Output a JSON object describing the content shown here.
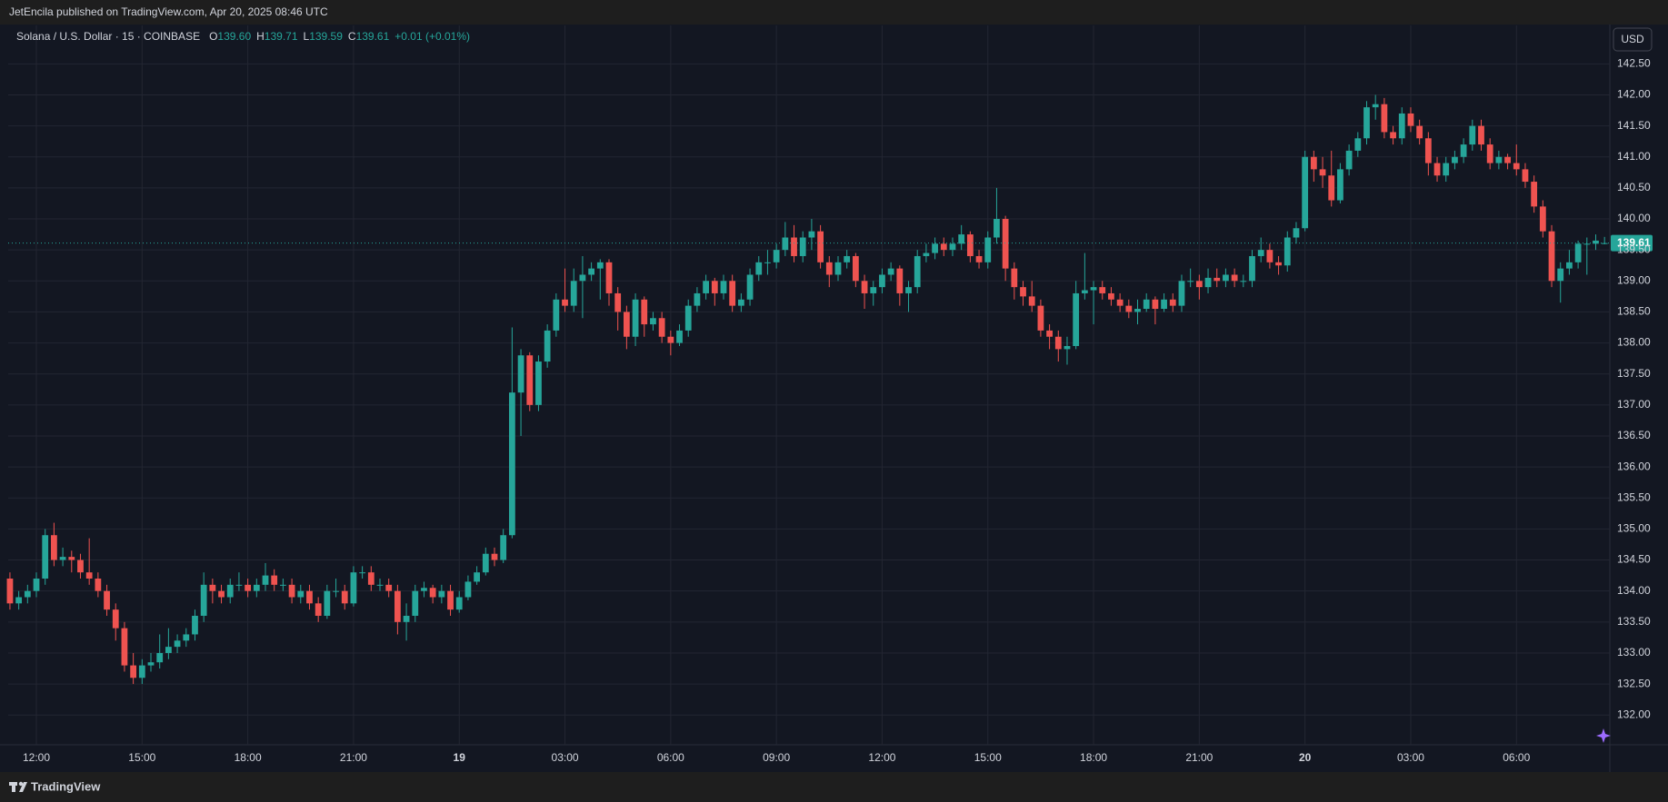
{
  "header": "JetEncila published on TradingView.com, Apr 20, 2025 08:46 UTC",
  "footer": "TradingView",
  "chart_data": {
    "type": "candlestick",
    "symbol": "Solana / U.S. Dollar · 15 · COINBASE",
    "legend_ohlc": [
      {
        "key": "O",
        "value": "139.60"
      },
      {
        "key": "H",
        "value": "139.71"
      },
      {
        "key": "L",
        "value": "139.59"
      },
      {
        "key": "C",
        "value": "139.61"
      }
    ],
    "change": "+0.01 (+0.01%)",
    "currency": "USD",
    "up_color": "#26a69a",
    "down_color": "#ef5350",
    "grid": true,
    "last_price": {
      "value": 139.61,
      "label": "139.61"
    },
    "xlim": [
      11.2,
      56.65
    ],
    "ylim": [
      131.52,
      143.12
    ],
    "xticks": [
      {
        "value": 12,
        "label": "12:00"
      },
      {
        "value": 15,
        "label": "15:00"
      },
      {
        "value": 18,
        "label": "18:00"
      },
      {
        "value": 21,
        "label": "21:00"
      },
      {
        "value": 24,
        "label": "19"
      },
      {
        "value": 27,
        "label": "03:00"
      },
      {
        "value": 30,
        "label": "06:00"
      },
      {
        "value": 33,
        "label": "09:00"
      },
      {
        "value": 36,
        "label": "12:00"
      },
      {
        "value": 39,
        "label": "15:00"
      },
      {
        "value": 42,
        "label": "18:00"
      },
      {
        "value": 45,
        "label": "21:00"
      },
      {
        "value": 48,
        "label": "20"
      },
      {
        "value": 51,
        "label": "03:00"
      },
      {
        "value": 54,
        "label": "06:00"
      }
    ],
    "yticks": [
      {
        "value": 132,
        "label": "132.00"
      },
      {
        "value": 132.5,
        "label": "132.50"
      },
      {
        "value": 133,
        "label": "133.00"
      },
      {
        "value": 133.5,
        "label": "133.50"
      },
      {
        "value": 134,
        "label": "134.00"
      },
      {
        "value": 134.5,
        "label": "134.50"
      },
      {
        "value": 135,
        "label": "135.00"
      },
      {
        "value": 135.5,
        "label": "135.50"
      },
      {
        "value": 136,
        "label": "136.00"
      },
      {
        "value": 136.5,
        "label": "136.50"
      },
      {
        "value": 137,
        "label": "137.00"
      },
      {
        "value": 137.5,
        "label": "137.50"
      },
      {
        "value": 138,
        "label": "138.00"
      },
      {
        "value": 138.5,
        "label": "138.50"
      },
      {
        "value": 139,
        "label": "139.00"
      },
      {
        "value": 139.5,
        "label": "139.50"
      },
      {
        "value": 140,
        "label": "140.00"
      },
      {
        "value": 140.5,
        "label": "140.50"
      },
      {
        "value": 141,
        "label": "141.00"
      },
      {
        "value": 141.5,
        "label": "141.50"
      },
      {
        "value": 142,
        "label": "142.00"
      },
      {
        "value": 142.5,
        "label": "142.50"
      }
    ],
    "x": [
      11.25,
      11.5,
      11.75,
      12,
      12.25,
      12.5,
      12.75,
      13,
      13.25,
      13.5,
      13.75,
      14,
      14.25,
      14.5,
      14.75,
      15,
      15.25,
      15.5,
      15.75,
      16,
      16.25,
      16.5,
      16.75,
      17,
      17.25,
      17.5,
      17.75,
      18,
      18.25,
      18.5,
      18.75,
      19,
      19.25,
      19.5,
      19.75,
      20,
      20.25,
      20.5,
      20.75,
      21,
      21.25,
      21.5,
      21.75,
      22,
      22.25,
      22.5,
      22.75,
      23,
      23.25,
      23.5,
      23.75,
      24,
      24.25,
      24.5,
      24.75,
      25,
      25.25,
      25.5,
      25.75,
      26,
      26.25,
      26.5,
      26.75,
      27,
      27.25,
      27.5,
      27.75,
      28,
      28.25,
      28.5,
      28.75,
      29,
      29.25,
      29.5,
      29.75,
      30,
      30.25,
      30.5,
      30.75,
      31,
      31.25,
      31.5,
      31.75,
      32,
      32.25,
      32.5,
      32.75,
      33,
      33.25,
      33.5,
      33.75,
      34,
      34.25,
      34.5,
      34.75,
      35,
      35.25,
      35.5,
      35.75,
      36,
      36.25,
      36.5,
      36.75,
      37,
      37.25,
      37.5,
      37.75,
      38,
      38.25,
      38.5,
      38.75,
      39,
      39.25,
      39.5,
      39.75,
      40,
      40.25,
      40.5,
      40.75,
      41,
      41.25,
      41.5,
      41.75,
      42,
      42.25,
      42.5,
      42.75,
      43,
      43.25,
      43.5,
      43.75,
      44,
      44.25,
      44.5,
      44.75,
      45,
      45.25,
      45.5,
      45.75,
      46,
      46.25,
      46.5,
      46.75,
      47,
      47.25,
      47.5,
      47.75,
      48,
      48.25,
      48.5,
      48.75,
      49,
      49.25,
      49.5,
      49.75,
      50,
      50.25,
      50.5,
      50.75,
      51,
      51.25,
      51.5,
      51.75,
      52,
      52.25,
      52.5,
      52.75,
      53,
      53.25,
      53.5,
      53.75,
      54,
      54.25,
      54.5,
      54.75,
      55,
      55.25,
      55.5,
      55.75,
      56,
      56.25,
      56.5
    ],
    "ohlc": [
      [
        134.2,
        134.3,
        133.7,
        133.8
      ],
      [
        133.8,
        134.0,
        133.7,
        133.9
      ],
      [
        133.9,
        134.1,
        133.8,
        134.0
      ],
      [
        134.0,
        134.3,
        133.9,
        134.2
      ],
      [
        134.2,
        135.0,
        134.1,
        134.9
      ],
      [
        134.9,
        135.1,
        134.4,
        134.5
      ],
      [
        134.5,
        134.7,
        134.4,
        134.55
      ],
      [
        134.55,
        134.65,
        134.3,
        134.5
      ],
      [
        134.5,
        134.6,
        134.2,
        134.3
      ],
      [
        134.3,
        134.85,
        134.1,
        134.2
      ],
      [
        134.2,
        134.3,
        133.9,
        134.0
      ],
      [
        134.0,
        134.1,
        133.6,
        133.7
      ],
      [
        133.7,
        133.8,
        133.2,
        133.4
      ],
      [
        133.4,
        133.5,
        132.7,
        132.8
      ],
      [
        132.8,
        133.0,
        132.5,
        132.6
      ],
      [
        132.6,
        132.9,
        132.5,
        132.8
      ],
      [
        132.8,
        133.0,
        132.7,
        132.85
      ],
      [
        132.85,
        133.3,
        132.75,
        133.0
      ],
      [
        133.0,
        133.4,
        132.9,
        133.1
      ],
      [
        133.1,
        133.3,
        133.0,
        133.2
      ],
      [
        133.2,
        133.4,
        133.1,
        133.3
      ],
      [
        133.3,
        133.7,
        133.2,
        133.6
      ],
      [
        133.6,
        134.3,
        133.5,
        134.1
      ],
      [
        134.1,
        134.2,
        133.8,
        134.0
      ],
      [
        134.0,
        134.1,
        133.8,
        133.9
      ],
      [
        133.9,
        134.2,
        133.8,
        134.1
      ],
      [
        134.1,
        134.3,
        134.0,
        134.1
      ],
      [
        134.1,
        134.2,
        133.9,
        134.0
      ],
      [
        134.0,
        134.2,
        133.9,
        134.1
      ],
      [
        134.1,
        134.45,
        134.0,
        134.25
      ],
      [
        134.25,
        134.35,
        134.0,
        134.1
      ],
      [
        134.1,
        134.2,
        134.0,
        134.1
      ],
      [
        134.1,
        134.2,
        133.8,
        133.9
      ],
      [
        133.9,
        134.1,
        133.8,
        134.0
      ],
      [
        134.0,
        134.1,
        133.7,
        133.8
      ],
      [
        133.8,
        133.9,
        133.5,
        133.6
      ],
      [
        133.6,
        134.1,
        133.55,
        134.0
      ],
      [
        134.0,
        134.2,
        133.9,
        134.0
      ],
      [
        134.0,
        134.1,
        133.7,
        133.8
      ],
      [
        133.8,
        134.4,
        133.75,
        134.3
      ],
      [
        134.3,
        134.4,
        134.2,
        134.3
      ],
      [
        134.3,
        134.4,
        134.0,
        134.1
      ],
      [
        134.1,
        134.2,
        134.0,
        134.1
      ],
      [
        134.1,
        134.2,
        133.9,
        134.0
      ],
      [
        134.0,
        134.1,
        133.3,
        133.5
      ],
      [
        133.5,
        133.8,
        133.2,
        133.6
      ],
      [
        133.6,
        134.1,
        133.5,
        134.0
      ],
      [
        134.0,
        134.15,
        133.9,
        134.05
      ],
      [
        134.05,
        134.1,
        133.8,
        133.9
      ],
      [
        133.9,
        134.1,
        133.8,
        134.0
      ],
      [
        134.0,
        134.1,
        133.6,
        133.7
      ],
      [
        133.7,
        134.0,
        133.65,
        133.9
      ],
      [
        133.9,
        134.25,
        133.85,
        134.15
      ],
      [
        134.15,
        134.4,
        134.1,
        134.3
      ],
      [
        134.3,
        134.7,
        134.25,
        134.6
      ],
      [
        134.6,
        134.7,
        134.4,
        134.5
      ],
      [
        134.5,
        135.0,
        134.45,
        134.9
      ],
      [
        134.9,
        138.25,
        134.85,
        137.2
      ],
      [
        137.2,
        137.9,
        136.5,
        137.8
      ],
      [
        137.8,
        137.85,
        136.9,
        137.0
      ],
      [
        137.0,
        137.8,
        136.9,
        137.7
      ],
      [
        137.7,
        138.3,
        137.6,
        138.2
      ],
      [
        138.2,
        138.8,
        138.1,
        138.7
      ],
      [
        138.7,
        139.2,
        138.5,
        138.6
      ],
      [
        138.6,
        139.2,
        138.5,
        139.0
      ],
      [
        139.0,
        139.4,
        138.4,
        139.1
      ],
      [
        139.1,
        139.3,
        139.0,
        139.2
      ],
      [
        139.2,
        139.35,
        138.7,
        139.3
      ],
      [
        139.3,
        139.35,
        138.6,
        138.8
      ],
      [
        138.8,
        138.9,
        138.2,
        138.5
      ],
      [
        138.5,
        138.6,
        137.9,
        138.1
      ],
      [
        138.1,
        138.8,
        137.95,
        138.7
      ],
      [
        138.7,
        138.75,
        138.1,
        138.3
      ],
      [
        138.3,
        138.5,
        138.2,
        138.4
      ],
      [
        138.4,
        138.5,
        138.0,
        138.1
      ],
      [
        138.1,
        138.2,
        137.8,
        138.0
      ],
      [
        138.0,
        138.3,
        137.95,
        138.2
      ],
      [
        138.2,
        138.7,
        138.1,
        138.6
      ],
      [
        138.6,
        138.9,
        138.5,
        138.8
      ],
      [
        138.8,
        139.1,
        138.7,
        139.0
      ],
      [
        139.0,
        139.05,
        138.6,
        138.8
      ],
      [
        138.8,
        139.1,
        138.7,
        139.0
      ],
      [
        139.0,
        139.1,
        138.5,
        138.6
      ],
      [
        138.6,
        138.8,
        138.5,
        138.7
      ],
      [
        138.7,
        139.2,
        138.6,
        139.1
      ],
      [
        139.1,
        139.4,
        139.0,
        139.3
      ],
      [
        139.3,
        139.5,
        139.1,
        139.3
      ],
      [
        139.3,
        139.6,
        139.2,
        139.5
      ],
      [
        139.5,
        139.95,
        139.4,
        139.7
      ],
      [
        139.7,
        139.9,
        139.3,
        139.4
      ],
      [
        139.4,
        139.8,
        139.3,
        139.7
      ],
      [
        139.7,
        140.0,
        139.5,
        139.8
      ],
      [
        139.8,
        139.9,
        139.2,
        139.3
      ],
      [
        139.3,
        139.4,
        138.9,
        139.1
      ],
      [
        139.1,
        139.4,
        139.0,
        139.3
      ],
      [
        139.3,
        139.5,
        139.2,
        139.4
      ],
      [
        139.4,
        139.45,
        138.9,
        139.0
      ],
      [
        139.0,
        139.1,
        138.55,
        138.8
      ],
      [
        138.8,
        139.0,
        138.6,
        138.9
      ],
      [
        138.9,
        139.2,
        138.8,
        139.1
      ],
      [
        139.1,
        139.3,
        139.0,
        139.2
      ],
      [
        139.2,
        139.25,
        138.6,
        138.8
      ],
      [
        138.8,
        139.0,
        138.5,
        138.9
      ],
      [
        138.9,
        139.5,
        138.8,
        139.4
      ],
      [
        139.4,
        139.6,
        139.3,
        139.45
      ],
      [
        139.45,
        139.7,
        139.35,
        139.6
      ],
      [
        139.6,
        139.7,
        139.4,
        139.5
      ],
      [
        139.5,
        139.7,
        139.4,
        139.6
      ],
      [
        139.6,
        139.9,
        139.5,
        139.75
      ],
      [
        139.75,
        139.8,
        139.3,
        139.4
      ],
      [
        139.4,
        139.5,
        139.2,
        139.3
      ],
      [
        139.3,
        139.8,
        139.2,
        139.7
      ],
      [
        139.7,
        140.5,
        139.6,
        140.0
      ],
      [
        140.0,
        140.05,
        139.0,
        139.2
      ],
      [
        139.2,
        139.3,
        138.7,
        138.9
      ],
      [
        138.9,
        139.0,
        138.6,
        138.75
      ],
      [
        138.75,
        139.0,
        138.5,
        138.6
      ],
      [
        138.6,
        138.7,
        138.1,
        138.2
      ],
      [
        138.2,
        138.3,
        137.9,
        138.1
      ],
      [
        138.1,
        138.2,
        137.7,
        137.9
      ],
      [
        137.9,
        138.1,
        137.65,
        137.95
      ],
      [
        137.95,
        139.0,
        137.9,
        138.8
      ],
      [
        138.8,
        139.45,
        138.7,
        138.85
      ],
      [
        138.85,
        139.0,
        138.3,
        138.9
      ],
      [
        138.9,
        139.0,
        138.7,
        138.8
      ],
      [
        138.8,
        138.9,
        138.6,
        138.7
      ],
      [
        138.7,
        138.8,
        138.5,
        138.6
      ],
      [
        138.6,
        138.7,
        138.4,
        138.5
      ],
      [
        138.5,
        138.7,
        138.3,
        138.55
      ],
      [
        138.55,
        138.8,
        138.5,
        138.7
      ],
      [
        138.7,
        138.75,
        138.3,
        138.55
      ],
      [
        138.55,
        138.8,
        138.5,
        138.7
      ],
      [
        138.7,
        138.8,
        138.5,
        138.6
      ],
      [
        138.6,
        139.1,
        138.5,
        139.0
      ],
      [
        139.0,
        139.2,
        138.9,
        139.0
      ],
      [
        139.0,
        139.1,
        138.7,
        138.9
      ],
      [
        138.9,
        139.2,
        138.8,
        139.05
      ],
      [
        139.05,
        139.2,
        138.9,
        139.0
      ],
      [
        139.0,
        139.2,
        138.9,
        139.1
      ],
      [
        139.1,
        139.2,
        138.9,
        139.0
      ],
      [
        139.0,
        139.1,
        138.9,
        139.0
      ],
      [
        139.0,
        139.5,
        138.9,
        139.4
      ],
      [
        139.4,
        139.7,
        139.3,
        139.5
      ],
      [
        139.5,
        139.6,
        139.2,
        139.3
      ],
      [
        139.3,
        139.4,
        139.1,
        139.25
      ],
      [
        139.25,
        139.8,
        139.15,
        139.7
      ],
      [
        139.7,
        139.95,
        139.6,
        139.85
      ],
      [
        139.85,
        141.1,
        139.8,
        141.0
      ],
      [
        141.0,
        141.1,
        140.6,
        140.8
      ],
      [
        140.8,
        141.0,
        140.5,
        140.7
      ],
      [
        140.7,
        141.1,
        140.2,
        140.3
      ],
      [
        140.3,
        140.9,
        140.25,
        140.8
      ],
      [
        140.8,
        141.2,
        140.7,
        141.1
      ],
      [
        141.1,
        141.4,
        141.0,
        141.3
      ],
      [
        141.3,
        141.9,
        141.2,
        141.8
      ],
      [
        141.8,
        142.0,
        141.6,
        141.85
      ],
      [
        141.85,
        141.95,
        141.3,
        141.4
      ],
      [
        141.4,
        141.5,
        141.2,
        141.3
      ],
      [
        141.3,
        141.8,
        141.2,
        141.7
      ],
      [
        141.7,
        141.8,
        141.4,
        141.5
      ],
      [
        141.5,
        141.6,
        141.2,
        141.3
      ],
      [
        141.3,
        141.4,
        140.7,
        140.9
      ],
      [
        140.9,
        141.0,
        140.6,
        140.7
      ],
      [
        140.7,
        141.0,
        140.6,
        140.9
      ],
      [
        140.9,
        141.1,
        140.8,
        141.0
      ],
      [
        141.0,
        141.3,
        140.9,
        141.2
      ],
      [
        141.2,
        141.6,
        141.1,
        141.5
      ],
      [
        141.5,
        141.6,
        141.1,
        141.2
      ],
      [
        141.2,
        141.3,
        140.8,
        140.9
      ],
      [
        140.9,
        141.1,
        140.8,
        141.0
      ],
      [
        141.0,
        141.05,
        140.8,
        140.9
      ],
      [
        140.9,
        141.2,
        140.7,
        140.8
      ],
      [
        140.8,
        140.9,
        140.5,
        140.6
      ],
      [
        140.6,
        140.7,
        140.1,
        140.2
      ],
      [
        140.2,
        140.3,
        139.7,
        139.8
      ],
      [
        139.8,
        139.9,
        138.9,
        139.0
      ],
      [
        139.0,
        139.3,
        138.65,
        139.2
      ],
      [
        139.2,
        139.5,
        139.1,
        139.3
      ],
      [
        139.3,
        139.65,
        139.2,
        139.6
      ],
      [
        139.6,
        139.7,
        139.1,
        139.6
      ],
      [
        139.6,
        139.75,
        139.5,
        139.65
      ],
      [
        139.6,
        139.71,
        139.59,
        139.61
      ]
    ]
  }
}
